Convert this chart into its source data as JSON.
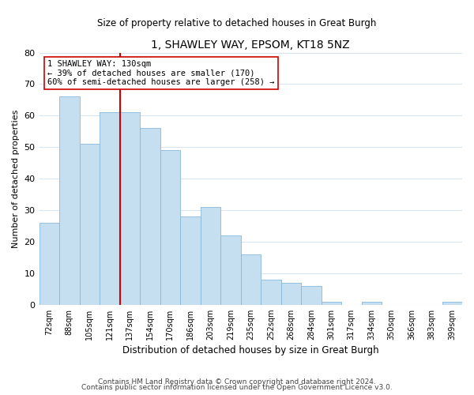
{
  "title": "1, SHAWLEY WAY, EPSOM, KT18 5NZ",
  "subtitle": "Size of property relative to detached houses in Great Burgh",
  "xlabel": "Distribution of detached houses by size in Great Burgh",
  "ylabel": "Number of detached properties",
  "footer1": "Contains HM Land Registry data © Crown copyright and database right 2024.",
  "footer2": "Contains public sector information licensed under the Open Government Licence v3.0.",
  "categories": [
    "72sqm",
    "88sqm",
    "105sqm",
    "121sqm",
    "137sqm",
    "154sqm",
    "170sqm",
    "186sqm",
    "203sqm",
    "219sqm",
    "235sqm",
    "252sqm",
    "268sqm",
    "284sqm",
    "301sqm",
    "317sqm",
    "334sqm",
    "350sqm",
    "366sqm",
    "383sqm",
    "399sqm"
  ],
  "values": [
    26,
    66,
    51,
    61,
    61,
    56,
    49,
    28,
    31,
    22,
    16,
    8,
    7,
    6,
    1,
    0,
    1,
    0,
    0,
    0,
    1
  ],
  "bar_color": "#c6dff0",
  "bar_edge_color": "#88b8d8",
  "vline_color": "#cc0000",
  "annotation_title": "1 SHAWLEY WAY: 130sqm",
  "annotation_line1": "← 39% of detached houses are smaller (170)",
  "annotation_line2": "60% of semi-detached houses are larger (258) →",
  "annotation_box_color": "#ffffff",
  "annotation_box_edge": "#cc0000",
  "ylim": [
    0,
    80
  ],
  "yticks": [
    0,
    10,
    20,
    30,
    40,
    50,
    60,
    70,
    80
  ],
  "bg_color": "#ffffff",
  "grid_color": "#d8e4f0"
}
